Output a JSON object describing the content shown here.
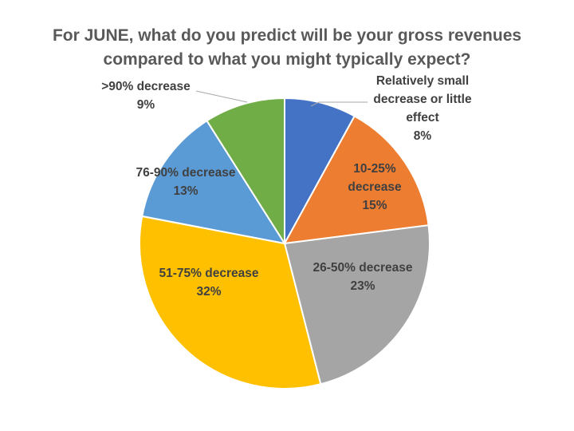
{
  "chart_data": {
    "type": "pie",
    "title": "For JUNE, what do you predict will be your gross revenues compared to what you might typically expect?",
    "title_lines": [
      "For JUNE, what do you predict will be your gross revenues",
      "compared to what you might typically expect?"
    ],
    "slices": [
      {
        "label": "Relatively small decrease or little effect",
        "label_lines": [
          "Relatively small",
          "decrease or little",
          "effect"
        ],
        "value": 8,
        "value_label": "8%",
        "color": "#4472C4"
      },
      {
        "label": "10-25% decrease",
        "label_lines": [
          "10-25%",
          "decrease"
        ],
        "value": 15,
        "value_label": "15%",
        "color": "#ED7D31"
      },
      {
        "label": "26-50% decrease",
        "label_lines": [
          "26-50% decrease"
        ],
        "value": 23,
        "value_label": "23%",
        "color": "#A5A5A5"
      },
      {
        "label": "51-75% decrease",
        "label_lines": [
          "51-75% decrease"
        ],
        "value": 32,
        "value_label": "32%",
        "color": "#FFC000"
      },
      {
        "label": "76-90% decrease",
        "label_lines": [
          "76-90% decrease"
        ],
        "value": 13,
        "value_label": "13%",
        "color": "#5B9BD5"
      },
      {
        "label": ">90% decrease",
        "label_lines": [
          ">90% decrease"
        ],
        "value": 9,
        "value_label": "9%",
        "color": "#70AD47"
      }
    ],
    "start": "12 o'clock",
    "direction": "clockwise",
    "legend": "none"
  }
}
